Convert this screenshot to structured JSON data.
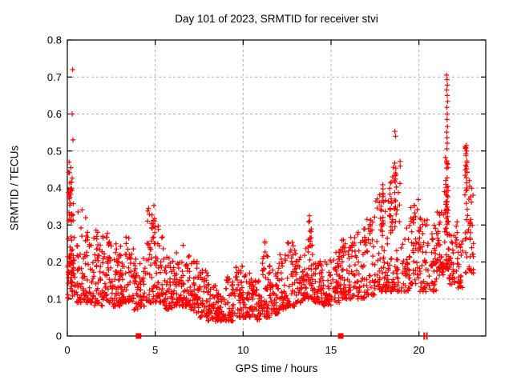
{
  "figure": {
    "background": "#ffffff",
    "frame_color": "#000000",
    "text_color": "#000000"
  },
  "chart_data": {
    "type": "scatter",
    "title": "Day 101 of 2023, SRMTID for receiver stvi",
    "xlabel": "GPS time / hours",
    "ylabel": "SRMTID / TECUs",
    "xlim": [
      0,
      23.8
    ],
    "ylim": [
      0,
      0.8
    ],
    "xticks": [
      0,
      5,
      10,
      15,
      20
    ],
    "xtick_labels": [
      "0",
      "5",
      "10",
      "15",
      "20"
    ],
    "yticks": [
      0,
      0.1,
      0.2,
      0.3,
      0.4,
      0.5,
      0.6,
      0.7,
      0.8
    ],
    "ytick_labels": [
      "0",
      "0.1",
      "0.2",
      "0.3",
      "0.4",
      "0.5",
      "0.6",
      "0.7",
      "0.8"
    ],
    "grid": true,
    "grid_style": "dashed",
    "grid_color": "#b0b0b0",
    "legend": "none",
    "series_name": "SRMTID",
    "marker": "plus",
    "marker_color": "#ff0000",
    "marker_size": 6.4,
    "seed": 101,
    "density_bins": [
      [
        0.0,
        0.45,
        0.1,
        0.22,
        40,
        1.2
      ],
      [
        0.0,
        0.4,
        0.19,
        0.33,
        28,
        1.3
      ],
      [
        0.05,
        0.35,
        0.33,
        0.45,
        22,
        0.9
      ],
      [
        0.5,
        1.0,
        0.09,
        0.35,
        46,
        2.2
      ],
      [
        1.0,
        1.5,
        0.09,
        0.33,
        48,
        2.0
      ],
      [
        1.5,
        2.0,
        0.08,
        0.3,
        48,
        1.9
      ],
      [
        2.0,
        2.5,
        0.09,
        0.28,
        48,
        1.8
      ],
      [
        2.5,
        3.0,
        0.08,
        0.26,
        48,
        1.8
      ],
      [
        3.0,
        3.5,
        0.09,
        0.27,
        48,
        1.8
      ],
      [
        3.5,
        4.0,
        0.07,
        0.24,
        44,
        1.8
      ],
      [
        4.0,
        4.5,
        0.08,
        0.22,
        40,
        1.7
      ],
      [
        4.5,
        5.0,
        0.09,
        0.36,
        44,
        2.2
      ],
      [
        4.78,
        5.0,
        0.24,
        0.36,
        12,
        1.0
      ],
      [
        5.0,
        5.5,
        0.09,
        0.3,
        44,
        2.0
      ],
      [
        5.5,
        6.0,
        0.07,
        0.22,
        44,
        1.6
      ],
      [
        6.0,
        6.5,
        0.08,
        0.24,
        44,
        1.7
      ],
      [
        6.5,
        7.0,
        0.08,
        0.26,
        44,
        1.8
      ],
      [
        7.0,
        7.5,
        0.06,
        0.21,
        44,
        1.6
      ],
      [
        7.5,
        8.0,
        0.05,
        0.18,
        44,
        1.5
      ],
      [
        8.0,
        8.5,
        0.04,
        0.14,
        44,
        1.4
      ],
      [
        8.5,
        9.0,
        0.04,
        0.12,
        44,
        1.3
      ],
      [
        9.0,
        9.5,
        0.04,
        0.16,
        44,
        1.5
      ],
      [
        9.5,
        10.0,
        0.05,
        0.19,
        46,
        1.5
      ],
      [
        10.0,
        10.5,
        0.05,
        0.17,
        44,
        1.5
      ],
      [
        10.5,
        11.0,
        0.04,
        0.15,
        44,
        1.5
      ],
      [
        11.0,
        11.5,
        0.05,
        0.22,
        44,
        1.8
      ],
      [
        11.1,
        11.3,
        0.17,
        0.26,
        8,
        1.0
      ],
      [
        11.5,
        12.0,
        0.06,
        0.19,
        44,
        1.6
      ],
      [
        12.0,
        12.5,
        0.07,
        0.22,
        44,
        1.6
      ],
      [
        12.5,
        13.0,
        0.08,
        0.26,
        44,
        1.8
      ],
      [
        13.0,
        13.5,
        0.09,
        0.23,
        44,
        1.6
      ],
      [
        13.5,
        14.0,
        0.1,
        0.31,
        44,
        1.9
      ],
      [
        13.7,
        13.9,
        0.24,
        0.335,
        10,
        1.0
      ],
      [
        14.0,
        14.5,
        0.09,
        0.23,
        44,
        1.6
      ],
      [
        14.5,
        15.0,
        0.08,
        0.21,
        42,
        1.6
      ],
      [
        15.0,
        15.5,
        0.09,
        0.23,
        42,
        1.6
      ],
      [
        15.5,
        16.0,
        0.1,
        0.26,
        42,
        1.6
      ],
      [
        16.0,
        16.5,
        0.1,
        0.27,
        42,
        1.6
      ],
      [
        16.5,
        17.0,
        0.1,
        0.3,
        42,
        1.7
      ],
      [
        17.0,
        17.5,
        0.11,
        0.33,
        42,
        1.8
      ],
      [
        17.5,
        18.0,
        0.12,
        0.41,
        44,
        2.0
      ],
      [
        17.85,
        17.97,
        0.27,
        0.41,
        10,
        1.0
      ],
      [
        18.0,
        18.5,
        0.12,
        0.43,
        44,
        2.0
      ],
      [
        18.33,
        18.45,
        0.29,
        0.43,
        10,
        1.0
      ],
      [
        18.5,
        19.0,
        0.12,
        0.49,
        44,
        2.0
      ],
      [
        18.58,
        18.7,
        0.33,
        0.49,
        10,
        1.0
      ],
      [
        19.0,
        19.5,
        0.12,
        0.3,
        40,
        1.6
      ],
      [
        19.5,
        20.0,
        0.14,
        0.37,
        42,
        1.7
      ],
      [
        20.0,
        20.5,
        0.12,
        0.34,
        42,
        1.6
      ],
      [
        20.5,
        21.0,
        0.12,
        0.3,
        38,
        1.5
      ],
      [
        21.0,
        21.4,
        0.16,
        0.34,
        40,
        1.4
      ],
      [
        21.45,
        21.7,
        0.18,
        0.52,
        46,
        1.8
      ],
      [
        21.5,
        21.65,
        0.28,
        0.5,
        14,
        1.0
      ],
      [
        21.7,
        22.2,
        0.14,
        0.31,
        40,
        1.6
      ],
      [
        22.2,
        22.5,
        0.13,
        0.26,
        24,
        1.5
      ],
      [
        22.6,
        23.1,
        0.17,
        0.42,
        44,
        1.5
      ],
      [
        22.62,
        22.8,
        0.38,
        0.52,
        12,
        1.0
      ]
    ],
    "outliers": [
      [
        0.3,
        0.72
      ],
      [
        0.28,
        0.6
      ],
      [
        0.32,
        0.53
      ],
      [
        0.1,
        0.47
      ],
      [
        0.2,
        0.455
      ],
      [
        18.63,
        0.553
      ],
      [
        18.67,
        0.54
      ],
      [
        21.57,
        0.705
      ],
      [
        21.6,
        0.693
      ],
      [
        21.62,
        0.678
      ],
      [
        21.58,
        0.665
      ],
      [
        21.61,
        0.65
      ],
      [
        21.63,
        0.634
      ],
      [
        21.59,
        0.618
      ],
      [
        21.61,
        0.6
      ],
      [
        21.6,
        0.585
      ],
      [
        21.62,
        0.566
      ],
      [
        21.58,
        0.551
      ],
      [
        21.6,
        0.536
      ],
      [
        21.61,
        0.521
      ],
      [
        21.59,
        0.506
      ],
      [
        22.7,
        0.515
      ],
      [
        22.72,
        0.5
      ],
      [
        22.68,
        0.488
      ],
      [
        22.73,
        0.473
      ],
      [
        22.7,
        0.458
      ],
      [
        22.74,
        0.443
      ],
      [
        22.69,
        0.428
      ],
      [
        22.71,
        0.414
      ],
      [
        22.72,
        0.4
      ]
    ],
    "baseline_markers": {
      "squares_x": [
        4.05,
        15.55
      ],
      "vticks_x": [
        20.3,
        20.45
      ]
    }
  }
}
